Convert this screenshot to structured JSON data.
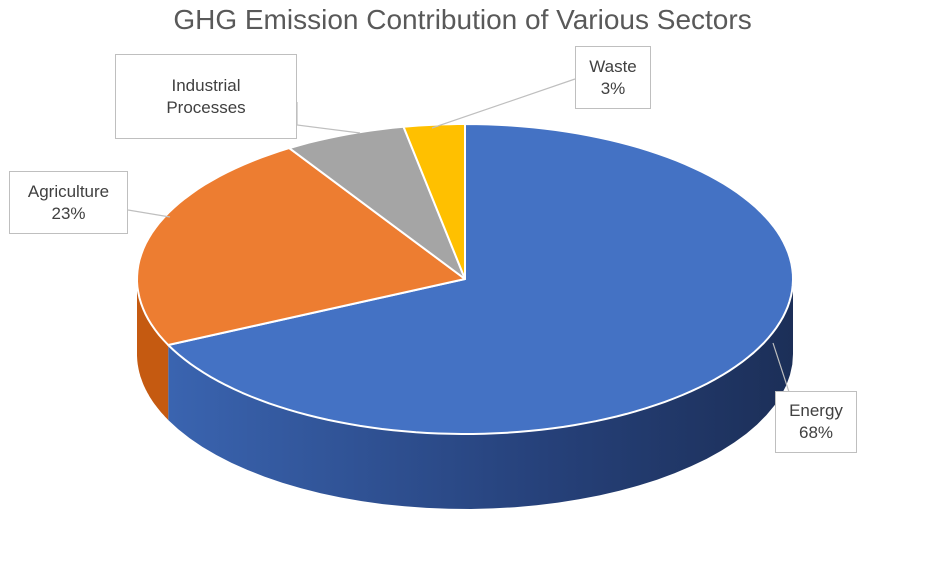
{
  "chart_data": {
    "type": "pie",
    "title": "GHG Emission Contribution of Various Sectors",
    "categories": [
      "Energy",
      "Agriculture",
      "Industrial Processes",
      "Waste"
    ],
    "values": [
      68,
      23,
      6,
      3
    ],
    "labels": [
      {
        "name": "Energy",
        "percent": "68%"
      },
      {
        "name": "Agriculture",
        "percent": "23%"
      },
      {
        "name": "Industrial\nProcesses",
        "percent": ""
      },
      {
        "name": "Waste",
        "percent": "3%"
      }
    ],
    "colors": [
      "#4472C4",
      "#ED7D31",
      "#A5A5A5",
      "#FFC000"
    ],
    "side_colors": [
      "#2F5597",
      "#C55A11",
      "#7F7F7F",
      "#BF9000"
    ],
    "legend": "none",
    "style": "3d"
  }
}
